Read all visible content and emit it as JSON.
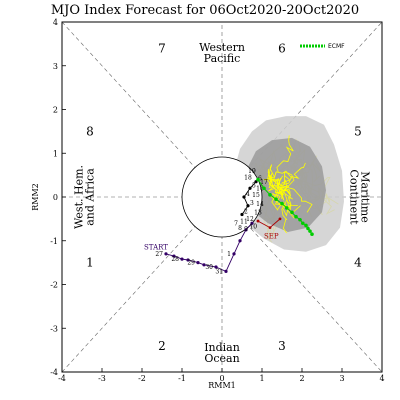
{
  "chart_data": {
    "type": "scatter",
    "title": "MJO Index Forecast for 06Oct2020-20Oct2020",
    "xlabel": "RMM1",
    "ylabel": "RMM2",
    "xlim": [
      -4,
      4
    ],
    "ylim": [
      -4,
      4
    ],
    "x_ticks": [
      "-4",
      "-3",
      "-2",
      "-1",
      "0",
      "1",
      "2",
      "3",
      "4"
    ],
    "y_ticks": [
      "-4",
      "-3",
      "-2",
      "-1",
      "0",
      "1",
      "2",
      "3",
      "4"
    ],
    "grid": false,
    "phases": [
      {
        "label": "1",
        "x": -3.3,
        "y": -1.5
      },
      {
        "label": "2",
        "x": -1.5,
        "y": -3.4
      },
      {
        "label": "3",
        "x": 1.5,
        "y": -3.4
      },
      {
        "label": "4",
        "x": 3.4,
        "y": -1.5
      },
      {
        "label": "5",
        "x": 3.4,
        "y": 1.5
      },
      {
        "label": "6",
        "x": 1.5,
        "y": 3.4
      },
      {
        "label": "7",
        "x": -1.5,
        "y": 3.4
      },
      {
        "label": "8",
        "x": -3.3,
        "y": 1.5
      }
    ],
    "regions": [
      {
        "name": "western-pacific",
        "lines": [
          "Western",
          "Pacific"
        ],
        "x": 0,
        "y": 3.3,
        "rotate": 0
      },
      {
        "name": "indian-ocean",
        "lines": [
          "Indian",
          "Ocean"
        ],
        "x": 0,
        "y": -3.55,
        "rotate": 0
      },
      {
        "name": "west-hem-africa",
        "lines": [
          "West. Hem.",
          "and Africa"
        ],
        "x": -3.45,
        "y": 0,
        "rotate": -90
      },
      {
        "name": "maritime-continent",
        "lines": [
          "Maritime",
          "Continent"
        ],
        "x": 3.45,
        "y": 0,
        "rotate": 90
      }
    ],
    "legend": {
      "label": "ECMF",
      "placement": "top-right"
    },
    "annotations": {
      "start": "START",
      "sep": "SEP"
    },
    "observed": {
      "points": [
        {
          "label": "27",
          "x": -1.4,
          "y": -1.3
        },
        {
          "label": "",
          "x": -1.2,
          "y": -1.35
        },
        {
          "label": "28",
          "x": -1.0,
          "y": -1.42
        },
        {
          "label": "",
          "x": -0.85,
          "y": -1.44
        },
        {
          "label": "29",
          "x": -0.6,
          "y": -1.5
        },
        {
          "label": "",
          "x": -0.45,
          "y": -1.55
        },
        {
          "label": "30",
          "x": -0.15,
          "y": -1.6
        },
        {
          "label": "31",
          "x": 0.1,
          "y": -1.7
        },
        {
          "label": "1",
          "x": 0.3,
          "y": -1.3
        },
        {
          "label": "",
          "x": 0.45,
          "y": -1.0
        },
        {
          "label": "",
          "x": 0.6,
          "y": -0.75
        },
        {
          "label": "",
          "x": 0.75,
          "y": -0.6
        }
      ],
      "sep_points": [
        {
          "x": 0.9,
          "y": -0.55
        },
        {
          "x": 1.2,
          "y": -0.7
        },
        {
          "x": 1.45,
          "y": -0.5
        }
      ],
      "oct_points": [
        {
          "label": "2",
          "x": 0.5,
          "y": -0.4
        },
        {
          "label": "3",
          "x": 0.65,
          "y": -0.2
        },
        {
          "label": "4",
          "x": 0.55,
          "y": 0.0
        },
        {
          "label": "5",
          "x": 0.7,
          "y": 0.2
        },
        {
          "label": "6",
          "x": 0.85,
          "y": 0.35
        }
      ],
      "extra_labels": [
        {
          "label": "7",
          "x": 0.35,
          "y": -0.65
        },
        {
          "label": "8",
          "x": 0.45,
          "y": -0.75
        },
        {
          "label": "9",
          "x": 0.6,
          "y": -0.78
        },
        {
          "label": "10",
          "x": 0.78,
          "y": -0.72
        },
        {
          "label": "11",
          "x": 0.55,
          "y": -0.6
        },
        {
          "label": "12",
          "x": 0.7,
          "y": -0.55
        },
        {
          "label": "13",
          "x": 0.9,
          "y": -0.4
        },
        {
          "label": "14",
          "x": 0.95,
          "y": -0.2
        },
        {
          "label": "15",
          "x": 0.85,
          "y": 0.0
        },
        {
          "label": "16",
          "x": 0.95,
          "y": 0.15
        },
        {
          "label": "17",
          "x": 1.05,
          "y": 0.3
        },
        {
          "label": "18",
          "x": 0.65,
          "y": 0.4
        },
        {
          "label": "19",
          "x": 0.75,
          "y": 0.55
        }
      ]
    },
    "ensemble_mean": [
      {
        "x": 0.9,
        "y": 0.4
      },
      {
        "x": 1.05,
        "y": 0.2
      },
      {
        "x": 1.2,
        "y": 0.05
      },
      {
        "x": 1.35,
        "y": -0.05
      },
      {
        "x": 1.5,
        "y": -0.15
      },
      {
        "x": 1.62,
        "y": -0.25
      },
      {
        "x": 1.75,
        "y": -0.35
      },
      {
        "x": 1.85,
        "y": -0.45
      },
      {
        "x": 1.95,
        "y": -0.52
      },
      {
        "x": 2.02,
        "y": -0.6
      },
      {
        "x": 2.1,
        "y": -0.65
      },
      {
        "x": 2.15,
        "y": -0.72
      },
      {
        "x": 2.2,
        "y": -0.78
      },
      {
        "x": 2.25,
        "y": -0.85
      }
    ],
    "shading_outer": [
      [
        0.35,
        -0.2
      ],
      [
        0.3,
        0.6
      ],
      [
        0.45,
        1.1
      ],
      [
        0.75,
        1.5
      ],
      [
        1.1,
        1.75
      ],
      [
        1.6,
        1.85
      ],
      [
        2.1,
        1.85
      ],
      [
        2.55,
        1.65
      ],
      [
        2.8,
        1.2
      ],
      [
        3.0,
        0.6
      ],
      [
        3.05,
        -0.1
      ],
      [
        2.95,
        -0.7
      ],
      [
        2.6,
        -1.1
      ],
      [
        2.1,
        -1.25
      ],
      [
        1.55,
        -1.2
      ],
      [
        1.05,
        -0.95
      ],
      [
        0.65,
        -0.65
      ]
    ],
    "shading_inner": [
      [
        0.6,
        0.0
      ],
      [
        0.6,
        0.6
      ],
      [
        0.85,
        1.05
      ],
      [
        1.25,
        1.3
      ],
      [
        1.75,
        1.35
      ],
      [
        2.2,
        1.15
      ],
      [
        2.5,
        0.7
      ],
      [
        2.6,
        0.15
      ],
      [
        2.5,
        -0.35
      ],
      [
        2.15,
        -0.7
      ],
      [
        1.65,
        -0.8
      ],
      [
        1.15,
        -0.6
      ],
      [
        0.8,
        -0.35
      ]
    ],
    "ensemble_tracks_color": "#ffff00",
    "shading_outer_color": "#cfcfcf",
    "shading_inner_color": "#9a9a9a",
    "observed_color": "#330066",
    "oct_color": "#000000",
    "sep_color": "#aa0000",
    "mean_color": "#00cc00"
  }
}
